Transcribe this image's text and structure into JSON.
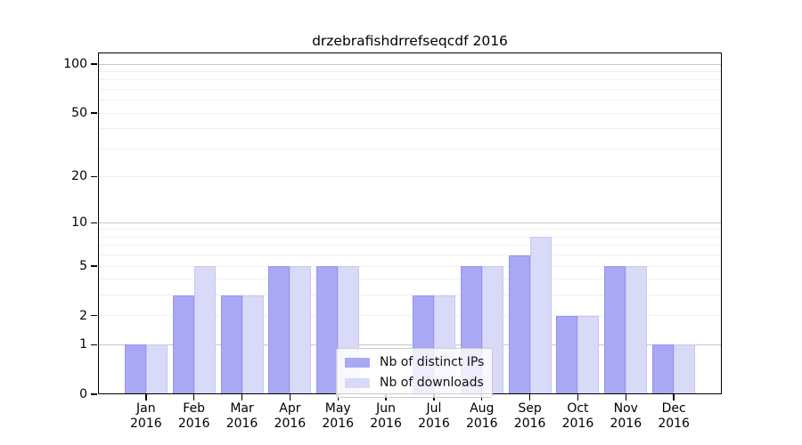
{
  "figure": {
    "background": "#ffffff"
  },
  "chart_data": {
    "type": "bar",
    "title": "drzebrafishdrrefseqcdf 2016",
    "categories": [
      "Jan",
      "Feb",
      "Mar",
      "Apr",
      "May",
      "Jun",
      "Jul",
      "Aug",
      "Sep",
      "Oct",
      "Nov",
      "Dec"
    ],
    "x_sublabel": "2016",
    "series": [
      {
        "name": "Nb of distinct IPs",
        "color": "#a8a8f5",
        "edge_color": "#9595ec",
        "values": [
          1,
          3,
          3,
          5,
          5,
          0,
          3,
          5,
          6,
          2,
          5,
          1
        ]
      },
      {
        "name": "Nb of downloads",
        "color": "#d9d9f8",
        "edge_color": "#c8c8f0",
        "values": [
          1,
          5,
          3,
          5,
          5,
          0,
          3,
          5,
          8,
          2,
          5,
          1
        ]
      }
    ],
    "yscale": "log1p",
    "y_ticks": [
      0,
      1,
      2,
      5,
      10,
      20,
      50,
      100
    ],
    "y_major_gridlines": [
      1,
      10,
      100
    ],
    "y_minor_gridlines": [
      2,
      3,
      4,
      5,
      6,
      7,
      8,
      9,
      20,
      30,
      40,
      50,
      60,
      70,
      80,
      90
    ],
    "ylim": [
      0,
      118
    ],
    "xlabel": "",
    "ylabel": "",
    "grid": "horizontal",
    "legend_position": "lower-center",
    "colors": {
      "axis": "#000000",
      "major_grid": "#c9c9c9",
      "minor_grid": "#efefef",
      "legend_border": "#cccccc"
    }
  }
}
